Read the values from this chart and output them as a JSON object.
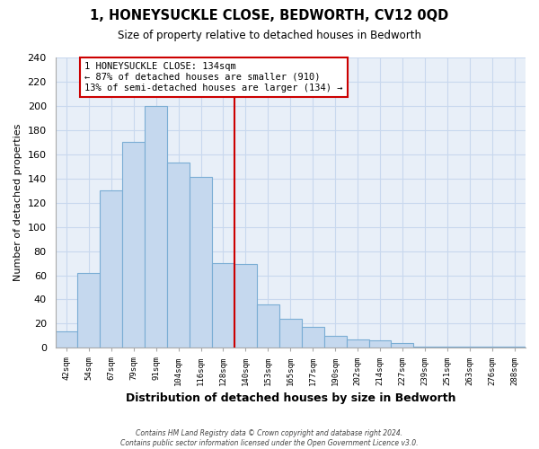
{
  "title": "1, HONEYSUCKLE CLOSE, BEDWORTH, CV12 0QD",
  "subtitle": "Size of property relative to detached houses in Bedworth",
  "xlabel": "Distribution of detached houses by size in Bedworth",
  "ylabel": "Number of detached properties",
  "bin_labels": [
    "42sqm",
    "54sqm",
    "67sqm",
    "79sqm",
    "91sqm",
    "104sqm",
    "116sqm",
    "128sqm",
    "140sqm",
    "153sqm",
    "165sqm",
    "177sqm",
    "190sqm",
    "202sqm",
    "214sqm",
    "227sqm",
    "239sqm",
    "251sqm",
    "263sqm",
    "276sqm",
    "288sqm"
  ],
  "bar_values": [
    14,
    62,
    130,
    170,
    200,
    153,
    141,
    70,
    69,
    36,
    24,
    17,
    10,
    7,
    6,
    4,
    1,
    1,
    1,
    1,
    1
  ],
  "bar_color": "#c5d8ee",
  "bar_edge_color": "#7aadd4",
  "vline_x_index": 8,
  "vline_color": "#cc0000",
  "annotation_box_text": "1 HONEYSUCKLE CLOSE: 134sqm\n← 87% of detached houses are smaller (910)\n13% of semi-detached houses are larger (134) →",
  "annotation_box_edgecolor": "#cc0000",
  "ylim": [
    0,
    240
  ],
  "yticks": [
    0,
    20,
    40,
    60,
    80,
    100,
    120,
    140,
    160,
    180,
    200,
    220,
    240
  ],
  "footer_text": "Contains HM Land Registry data © Crown copyright and database right 2024.\nContains public sector information licensed under the Open Government Licence v3.0.",
  "grid_color": "#c8d8ee",
  "plot_bg_color": "#e8eff8",
  "fig_bg_color": "#ffffff"
}
